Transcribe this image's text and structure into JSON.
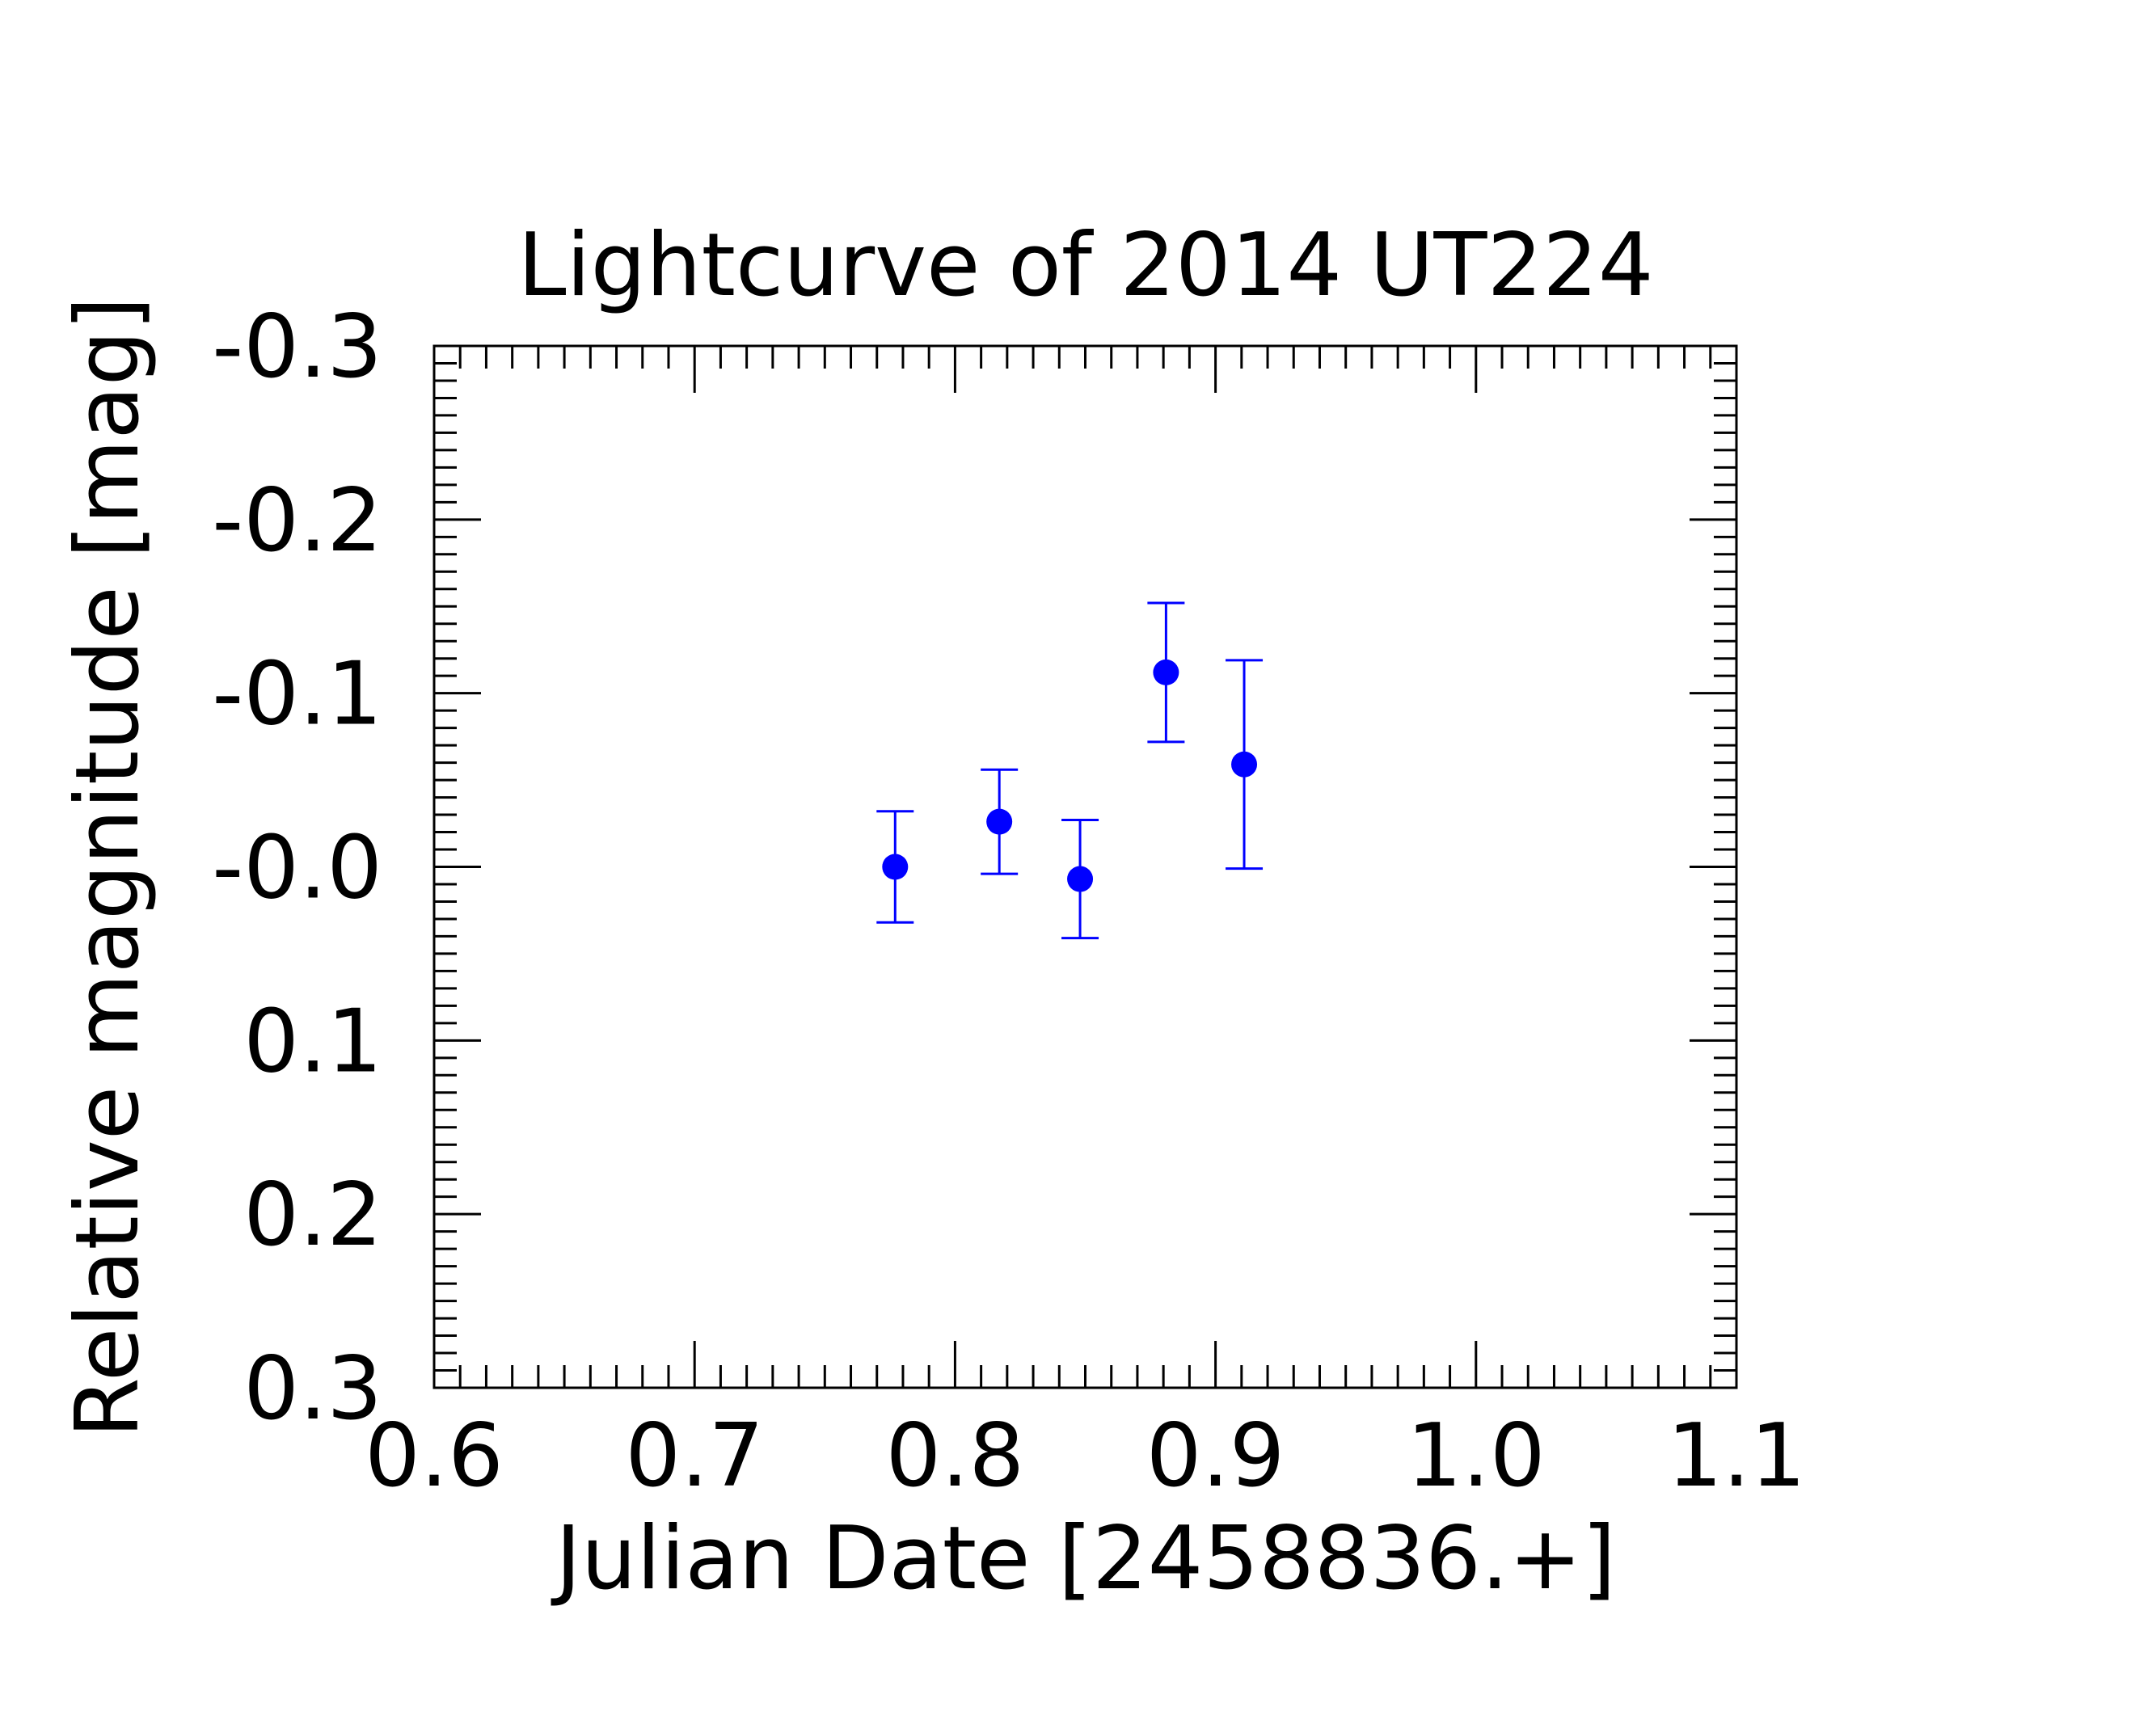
{
  "chart_data": {
    "type": "scatter",
    "title": "Lightcurve of 2014 UT224",
    "xlabel": "Julian Date [2458836.+]",
    "ylabel": "Relative magnitude [mag]",
    "xlim": [
      0.6,
      1.1
    ],
    "ylim": [
      0.3,
      -0.3
    ],
    "y_inverted": true,
    "x_ticks": [
      "0.6",
      "0.7",
      "0.8",
      "0.9",
      "1.0",
      "1.1"
    ],
    "x_tick_values": [
      0.6,
      0.7,
      0.8,
      0.9,
      1.0,
      1.1
    ],
    "y_ticks": [
      "-0.3",
      "-0.2",
      "-0.1",
      "-0.0",
      "0.1",
      "0.2",
      "0.3"
    ],
    "y_tick_values": [
      -0.3,
      -0.2,
      -0.1,
      0.0,
      0.1,
      0.2,
      0.3
    ],
    "grid": false,
    "marker_color": "#0000ff",
    "series": [
      {
        "x": [
          0.777,
          0.817,
          0.848,
          0.881,
          0.911
        ],
        "y": [
          0.0,
          -0.026,
          0.007,
          -0.112,
          -0.059
        ],
        "yerr": [
          0.032,
          0.03,
          0.034,
          0.04,
          0.06
        ]
      }
    ]
  }
}
